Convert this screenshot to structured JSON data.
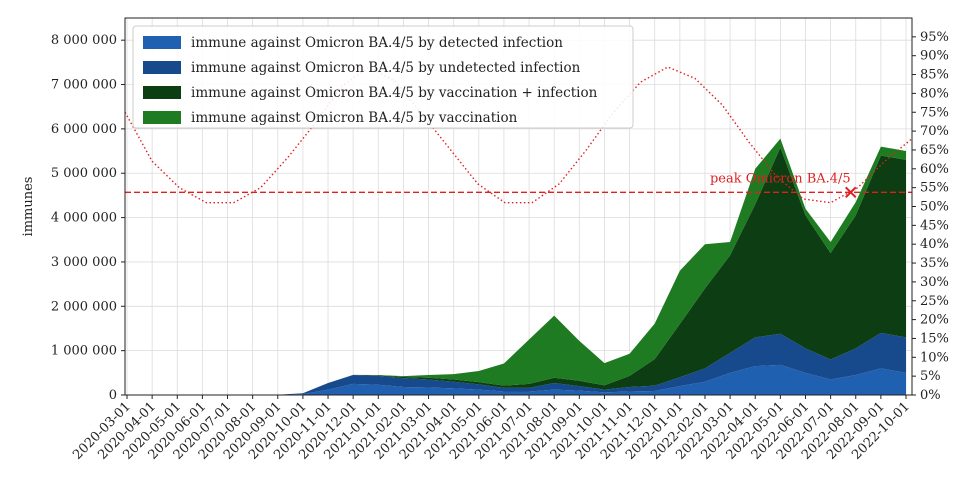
{
  "chart_data": {
    "type": "area",
    "ylabel": "immunes",
    "ylim": [
      0,
      8500000
    ],
    "y_ticks": [
      "0",
      "1 000 000",
      "2 000 000",
      "3 000 000",
      "4 000 000",
      "5 000 000",
      "6 000 000",
      "7 000 000",
      "8 000 000"
    ],
    "y2_ticks": [
      "0%",
      "5%",
      "10%",
      "15%",
      "20%",
      "25%",
      "30%",
      "35%",
      "40%",
      "45%",
      "50%",
      "55%",
      "60%",
      "65%",
      "70%",
      "75%",
      "80%",
      "85%",
      "90%",
      "95%"
    ],
    "y2lim": [
      0,
      1.0
    ],
    "x_ticks": [
      "2020-03-01",
      "2020-04-01",
      "2020-05-01",
      "2020-06-01",
      "2020-07-01",
      "2020-08-01",
      "2020-09-01",
      "2020-10-01",
      "2020-11-01",
      "2020-12-01",
      "2021-01-01",
      "2021-02-01",
      "2021-03-01",
      "2021-04-01",
      "2021-05-01",
      "2021-06-01",
      "2021-07-01",
      "2021-08-01",
      "2021-09-01",
      "2021-10-01",
      "2021-11-01",
      "2021-12-01",
      "2022-01-01",
      "2022-02-01",
      "2022-03-01",
      "2022-04-01",
      "2022-05-01",
      "2022-06-01",
      "2022-07-01",
      "2022-08-01",
      "2022-09-01",
      "2022-10-01"
    ],
    "grid": true,
    "legend_position": "top-left",
    "stacking": "stacked",
    "series": [
      {
        "name": "immune against Omicron BA.4/5 by detected infection",
        "color": "#2060b0",
        "values": [
          5000,
          5000,
          4000,
          3000,
          2000,
          2000,
          3000,
          20000,
          120000,
          250000,
          230000,
          180000,
          170000,
          150000,
          120000,
          80000,
          80000,
          120000,
          100000,
          60000,
          80000,
          90000,
          200000,
          300000,
          500000,
          650000,
          680000,
          500000,
          350000,
          450000,
          600000,
          500000
        ]
      },
      {
        "name": "immune against Omicron BA.4/5 by undetected infection",
        "color": "#174a8c",
        "values": [
          5000,
          5000,
          4000,
          3000,
          2000,
          2000,
          3000,
          20000,
          150000,
          200000,
          200000,
          200000,
          180000,
          150000,
          120000,
          80000,
          80000,
          150000,
          100000,
          60000,
          100000,
          120000,
          200000,
          300000,
          450000,
          650000,
          700000,
          550000,
          450000,
          600000,
          800000,
          800000
        ]
      },
      {
        "name": "immune against Omicron BA.4/5 by vaccination + infection",
        "color": "#0d3d12",
        "values": [
          0,
          0,
          0,
          0,
          0,
          0,
          0,
          0,
          0,
          5000,
          15000,
          25000,
          40000,
          50000,
          50000,
          50000,
          90000,
          120000,
          120000,
          100000,
          250000,
          600000,
          1200000,
          1800000,
          2200000,
          3000000,
          4200000,
          3000000,
          2400000,
          3000000,
          4000000,
          4000000
        ]
      },
      {
        "name": "immune against Omicron BA.4/5 by vaccination",
        "color": "#1e7b22",
        "values": [
          0,
          0,
          0,
          0,
          0,
          0,
          0,
          0,
          0,
          0,
          5000,
          20000,
          60000,
          120000,
          250000,
          500000,
          1000000,
          1400000,
          900000,
          500000,
          500000,
          800000,
          1200000,
          1000000,
          300000,
          800000,
          200000,
          150000,
          250000,
          300000,
          200000,
          200000
        ]
      }
    ],
    "seasonality_curve": {
      "style": "red dotted",
      "values": [
        0.75,
        0.62,
        0.55,
        0.51,
        0.51,
        0.55,
        0.63,
        0.72,
        0.82,
        0.87,
        0.83,
        0.74,
        0.65,
        0.56,
        0.51,
        0.51,
        0.56,
        0.65,
        0.75,
        0.83,
        0.87,
        0.84,
        0.77,
        0.67,
        0.58,
        0.52,
        0.51,
        0.55,
        0.62,
        0.68
      ]
    },
    "threshold_line": {
      "style": "red dashed",
      "y": 4570000,
      "marker_label": "peak Omicron BA.4/5",
      "marker_x": "2022-07-25"
    }
  }
}
